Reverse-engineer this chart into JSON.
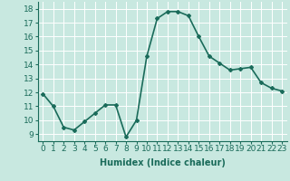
{
  "x": [
    0,
    1,
    2,
    3,
    4,
    5,
    6,
    7,
    8,
    9,
    10,
    11,
    12,
    13,
    14,
    15,
    16,
    17,
    18,
    19,
    20,
    21,
    22,
    23
  ],
  "y": [
    11.9,
    11.0,
    9.5,
    9.3,
    9.9,
    10.5,
    11.1,
    11.1,
    8.8,
    10.0,
    14.6,
    17.3,
    17.8,
    17.8,
    17.5,
    16.0,
    14.6,
    14.1,
    13.6,
    13.7,
    13.8,
    12.7,
    12.3,
    12.1
  ],
  "line_color": "#1a6b5a",
  "marker": "D",
  "marker_size": 2.0,
  "background_color": "#c8e8e0",
  "grid_color": "#ffffff",
  "xlabel": "Humidex (Indice chaleur)",
  "xlim": [
    -0.5,
    23.5
  ],
  "ylim": [
    8.5,
    18.5
  ],
  "yticks": [
    9,
    10,
    11,
    12,
    13,
    14,
    15,
    16,
    17,
    18
  ],
  "xticks": [
    0,
    1,
    2,
    3,
    4,
    5,
    6,
    7,
    8,
    9,
    10,
    11,
    12,
    13,
    14,
    15,
    16,
    17,
    18,
    19,
    20,
    21,
    22,
    23
  ],
  "xlabel_fontsize": 7,
  "tick_fontsize": 6.5,
  "linewidth": 1.2
}
